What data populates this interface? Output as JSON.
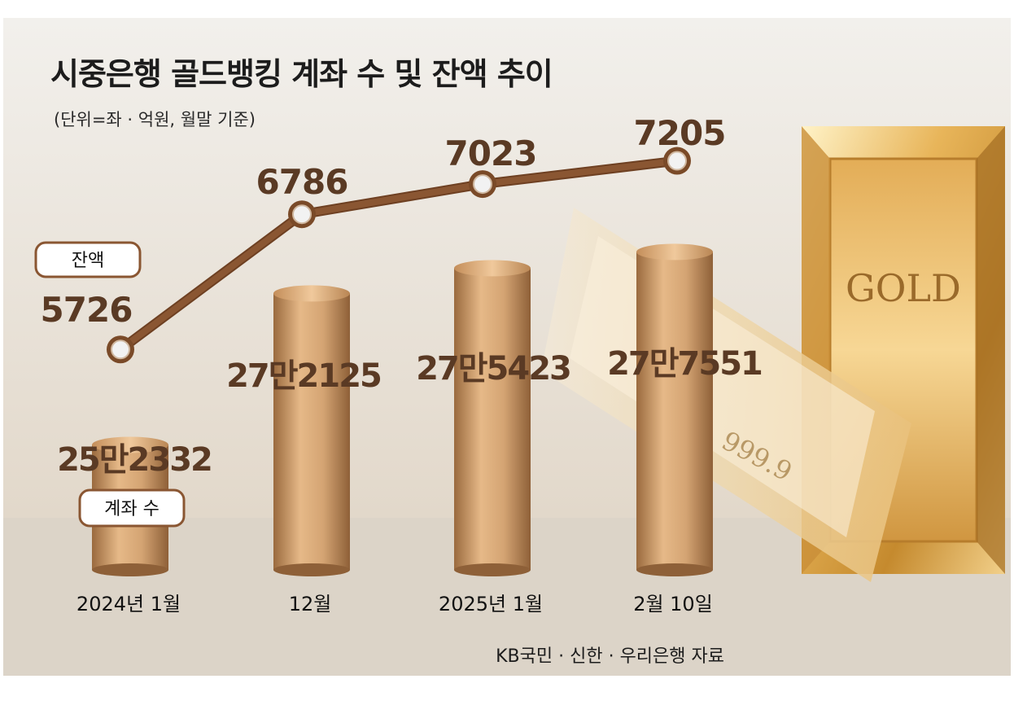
{
  "title": "시중은행 골드뱅킹 계좌 수 및 잔액 추이",
  "unit_note": "(단위=좌 · 억원, 월말 기준)",
  "source": "KB국민 · 신한 · 우리은행 자료",
  "colors": {
    "line": "#8a5632",
    "bar_main": "#c69562",
    "bar_light": "#ecc08e",
    "bar_dark": "#8c5e36",
    "value_text": "#5a3a24",
    "tag_border": "#8a5632",
    "gold": "#d9a84a"
  },
  "illustration": {
    "gold_bar_text": "GOLD",
    "gold_bar_purity": "999.9"
  },
  "chart_data": {
    "type": "bar+line",
    "categories": [
      "2024년 1월",
      "12월",
      "2025년 1월",
      "2월 10일"
    ],
    "series": [
      {
        "name": "계좌 수",
        "type": "bar",
        "values": [
          252332,
          272125,
          275423,
          277551
        ],
        "labels": [
          "25만2332",
          "27만2125",
          "27만5423",
          "27만7551"
        ]
      },
      {
        "name": "잔액",
        "type": "line",
        "values": [
          5726,
          6786,
          7023,
          7205
        ],
        "labels": [
          "5726",
          "6786",
          "7023",
          "7205"
        ]
      }
    ]
  }
}
